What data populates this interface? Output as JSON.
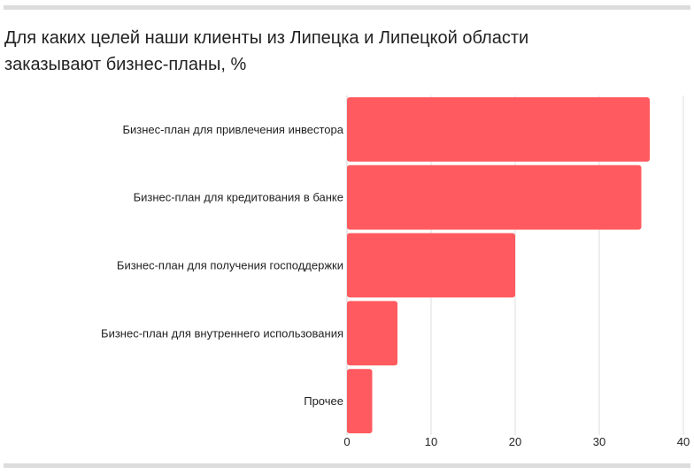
{
  "header": {
    "title_line1": "Для каких целей наши клиенты из Липецка и Липецкой области",
    "title_line2": "заказывают бизнес-планы, %"
  },
  "chart_data": {
    "type": "bar",
    "orientation": "horizontal",
    "title": "Для каких целей наши клиенты из Липецка и Липецкой области заказывают бизнес-планы, %",
    "categories": [
      "Бизнес-план для привлечения инвестора",
      "Бизнес-план для кредитования в банке",
      "Бизнес-план для получения господдержки",
      "Бизнес-план для внутреннего использования",
      "Прочее"
    ],
    "values": [
      36,
      35,
      20,
      6,
      3
    ],
    "xlim": [
      0,
      40
    ],
    "xticks": [
      "0",
      "10",
      "20",
      "30",
      "40"
    ],
    "grid": true,
    "bar_color": "#ff5a5f"
  }
}
